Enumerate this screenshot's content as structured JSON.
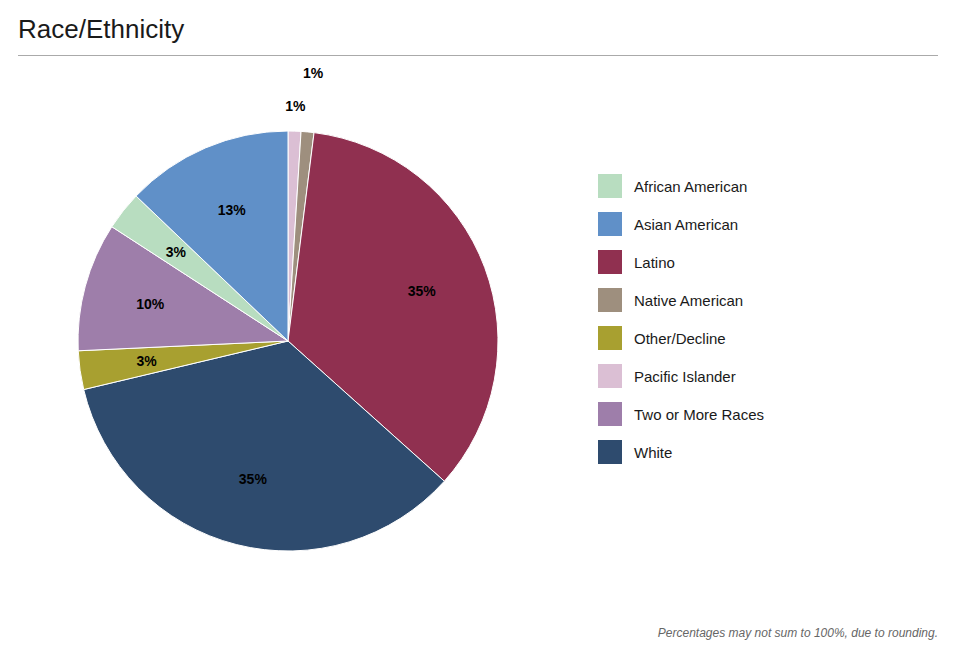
{
  "chart_data": {
    "type": "pie",
    "title": "Race/Ethnicity",
    "annotations": [
      "Percentages may not sum to 100%, due to rounding."
    ],
    "categories": [
      "Pacific Islander",
      "Native American",
      "Latino",
      "White",
      "Other/Decline",
      "Two or More Races",
      "African American",
      "Asian American"
    ],
    "values": [
      1,
      1,
      35,
      35,
      3,
      10,
      3,
      13
    ],
    "value_labels": [
      "1%",
      "1%",
      "35%",
      "35%",
      "3%",
      "10%",
      "3%",
      "13%"
    ],
    "data_labels": true,
    "colors": [
      "#dbbfd4",
      "#9e8f7e",
      "#903050",
      "#2e4b6e",
      "#a8a030",
      "#9e7eaa",
      "#b8ddc0",
      "#6090c8"
    ],
    "legend": "right",
    "legend_order": [
      "African American",
      "Asian American",
      "Latino",
      "Native American",
      "Other/Decline",
      "Pacific Islander",
      "Two or More Races",
      "White"
    ]
  }
}
